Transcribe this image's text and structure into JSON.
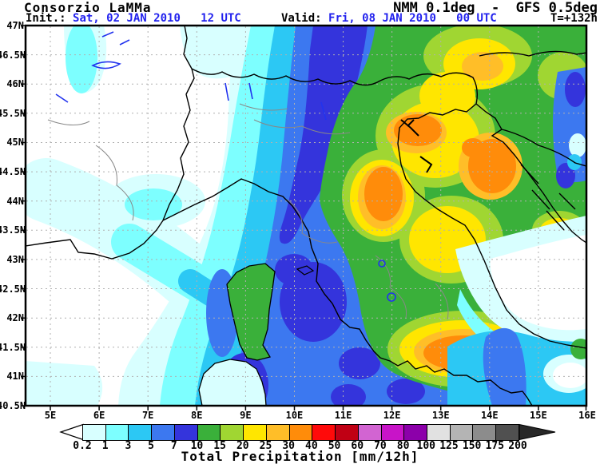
{
  "header": {
    "source": "Consorzio LaMMa",
    "model": "NMM 0.1deg  -  GFS 0.5deg",
    "init_label": "Init.: ",
    "init_value": "Sat, 02 JAN 2010   12 UTC",
    "valid_label": "Valid: ",
    "valid_value": "Fri, 08 JAN 2010   00 UTC",
    "lead_time": "T=+132h",
    "date_color": "#2222ee"
  },
  "map": {
    "lat_labels": [
      "47N",
      "46.5N",
      "46N",
      "45.5N",
      "45N",
      "44.5N",
      "44N",
      "43.5N",
      "43N",
      "42.5N",
      "42N",
      "41.5N",
      "41N",
      "40.5N"
    ],
    "lon_labels": [
      "5E",
      "6E",
      "7E",
      "8E",
      "9E",
      "10E",
      "11E",
      "12E",
      "13E",
      "14E",
      "15E",
      "16E"
    ]
  },
  "colorbar": {
    "title": "Total Precipitation [mm/12h]",
    "unit": "mm/12h",
    "tick_labels": [
      "0.2",
      "1",
      "3",
      "5",
      "7",
      "10",
      "15",
      "20",
      "25",
      "30",
      "40",
      "50",
      "60",
      "70",
      "80",
      "100",
      "125",
      "150",
      "175",
      "200"
    ],
    "colors": [
      "#d8ffff",
      "#7dffff",
      "#2cc8f4",
      "#3c78f0",
      "#3434dc",
      "#3ab03a",
      "#a0d632",
      "#ffe600",
      "#ffbe28",
      "#ff8c0a",
      "#ff0a0a",
      "#c00014",
      "#d264d2",
      "#c814c8",
      "#8c00aa",
      "#e1e1e1",
      "#b4b4b4",
      "#8c8c8c",
      "#505050"
    ],
    "under_arrow_color": "#ffffff",
    "over_arrow_color": "#282828"
  }
}
